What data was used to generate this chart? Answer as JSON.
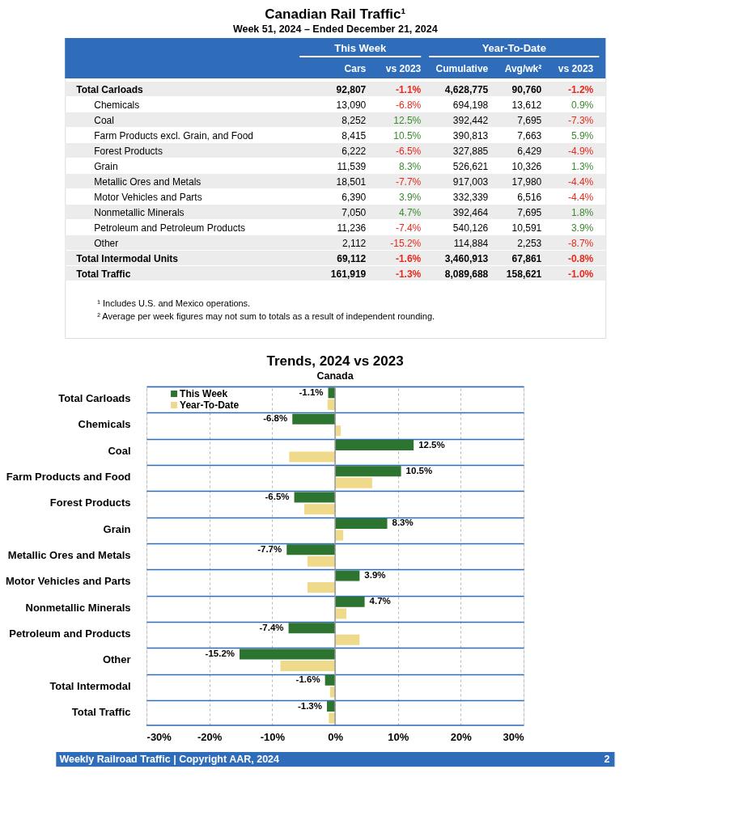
{
  "chart_data": [
    {
      "type": "other",
      "title": "Canadian Rail Traffic¹",
      "subtitle": "Week 51, 2024 – Ended December 21, 2024",
      "annotations": [
        "This Week",
        "Year-To-Date",
        "Cars",
        "vs 2023",
        "Cumulative",
        "Avg/wk²",
        "vs 2023",
        "Total Carloads",
        "92,807",
        "-1.1%",
        "4,628,775",
        "90,760",
        "-1.2%",
        "Chemicals",
        "13,090",
        "-6.8%",
        "694,198",
        "13,612",
        "0.9%",
        "Coal",
        "8,252",
        "12.5%",
        "392,442",
        "7,695",
        "-7.3%",
        "Farm Products excl. Grain, and Food",
        "8,415",
        "10.5%",
        "390,813",
        "7,663",
        "5.9%",
        "Forest Products",
        "6,222",
        "-6.5%",
        "327,885",
        "6,429",
        "-4.9%",
        "Grain",
        "11,539",
        "8.3%",
        "526,621",
        "10,326",
        "1.3%",
        "Metallic Ores and Metals",
        "18,501",
        "-7.7%",
        "917,003",
        "17,980",
        "-4.4%",
        "Motor Vehicles and Parts",
        "6,390",
        "3.9%",
        "332,339",
        "6,516",
        "-4.4%",
        "Nonmetallic Minerals",
        "7,050",
        "4.7%",
        "392,464",
        "7,695",
        "1.8%",
        "Petroleum and Petroleum Products",
        "11,236",
        "-7.4%",
        "540,126",
        "10,591",
        "3.9%",
        "Other",
        "2,112",
        "-15.2%",
        "114,884",
        "2,253",
        "-8.7%",
        "Total Intermodal Units",
        "69,112",
        "-1.6%",
        "3,460,913",
        "67,861",
        "-0.8%",
        "Total Traffic",
        "161,919",
        "-1.3%",
        "8,089,688",
        "158,621",
        "-1.0%",
        "¹ Includes U.S. and Mexico operations.",
        "² Average per week figures may not sum to totals as a result of independent rounding."
      ]
    },
    {
      "type": "bar",
      "orientation": "horizontal",
      "title": "Trends, 2024 vs 2023",
      "subtitle": "Canada",
      "categories": [
        "Total Carloads",
        "Chemicals",
        "Coal",
        "Farm Products and Food",
        "Forest Products",
        "Grain",
        "Metallic Ores and Metals",
        "Motor Vehicles and Parts",
        "Nonmetallic Minerals",
        "Petroleum and Products",
        "Other",
        "Total Intermodal",
        "Total Traffic"
      ],
      "series": [
        {
          "name": "This Week",
          "color": "#2e7431",
          "values": [
            -1.1,
            -6.8,
            12.5,
            10.5,
            -6.5,
            8.3,
            -7.7,
            3.9,
            4.7,
            -7.4,
            -15.2,
            -1.6,
            -1.3
          ],
          "value_labels": [
            "-1.1%",
            "-6.8%",
            "12.5%",
            "10.5%",
            "-6.5%",
            "8.3%",
            "-7.7%",
            "3.9%",
            "4.7%",
            "-7.4%",
            "-15.2%",
            "-1.6%",
            "-1.3%"
          ]
        },
        {
          "name": "Year-To-Date",
          "color": "#efd98a",
          "values": [
            -1.2,
            0.9,
            -7.3,
            5.9,
            -4.9,
            1.3,
            -4.4,
            -4.4,
            1.8,
            3.9,
            -8.7,
            -0.8,
            -1.0
          ]
        }
      ],
      "xlim": [
        -30,
        30
      ],
      "xticks": [
        {
          "value": -30,
          "label": "-30%"
        },
        {
          "value": -20,
          "label": "-20%"
        },
        {
          "value": -10,
          "label": "-10%"
        },
        {
          "value": 0,
          "label": "0%"
        },
        {
          "value": 10,
          "label": "10%"
        },
        {
          "value": 20,
          "label": "20%"
        },
        {
          "value": 30,
          "label": "30%"
        }
      ],
      "grid": true,
      "legend": "top left",
      "annotations": [
        "Weekly Railroad Traffic | Copyright AAR, 2024",
        "2"
      ]
    }
  ]
}
